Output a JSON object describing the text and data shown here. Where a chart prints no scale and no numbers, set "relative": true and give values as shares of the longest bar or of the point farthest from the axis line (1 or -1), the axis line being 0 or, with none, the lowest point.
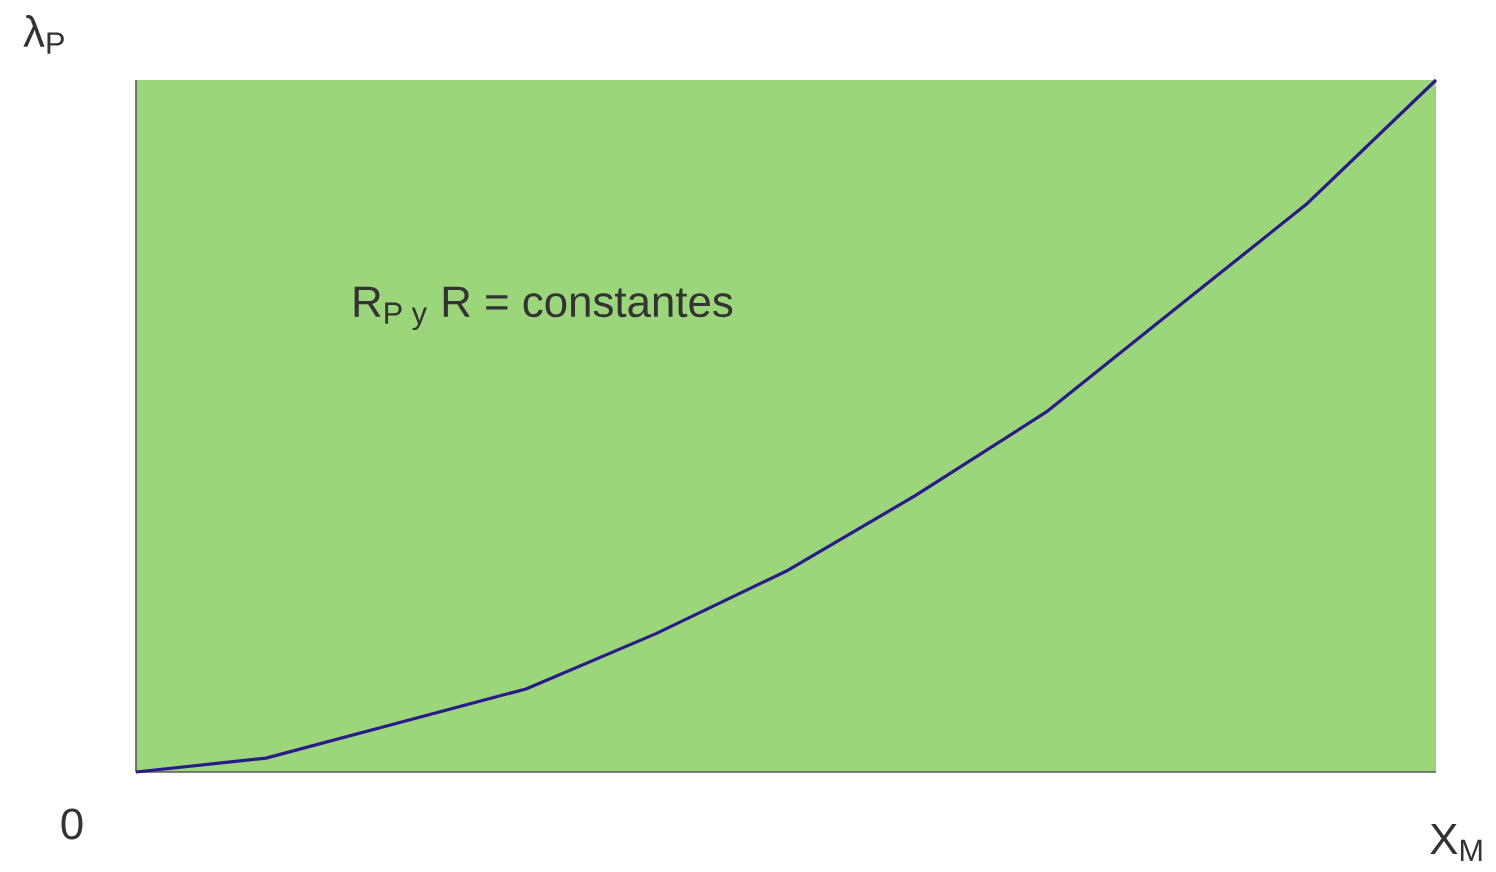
{
  "chart_data": {
    "type": "line",
    "relative": true,
    "xlabel": "X$_{M}$",
    "ylabel": "λ$_{P}$",
    "categories": [
      null,
      null,
      null,
      null,
      null,
      null,
      null,
      null,
      null,
      null,
      null
    ],
    "series": [
      {
        "color": "#2b1a8a",
        "values": [
          0,
          0.02,
          0.07,
          0.12,
          0.2,
          0.29,
          0.4,
          0.52,
          0.67,
          0.82,
          1
        ]
      }
    ],
    "annotations": [
      "\\text{R}_{\\text{P y}}\\text{ R = constantes}",
      "0"
    ],
    "marker": "none",
    "line_style": "solid"
  }
}
